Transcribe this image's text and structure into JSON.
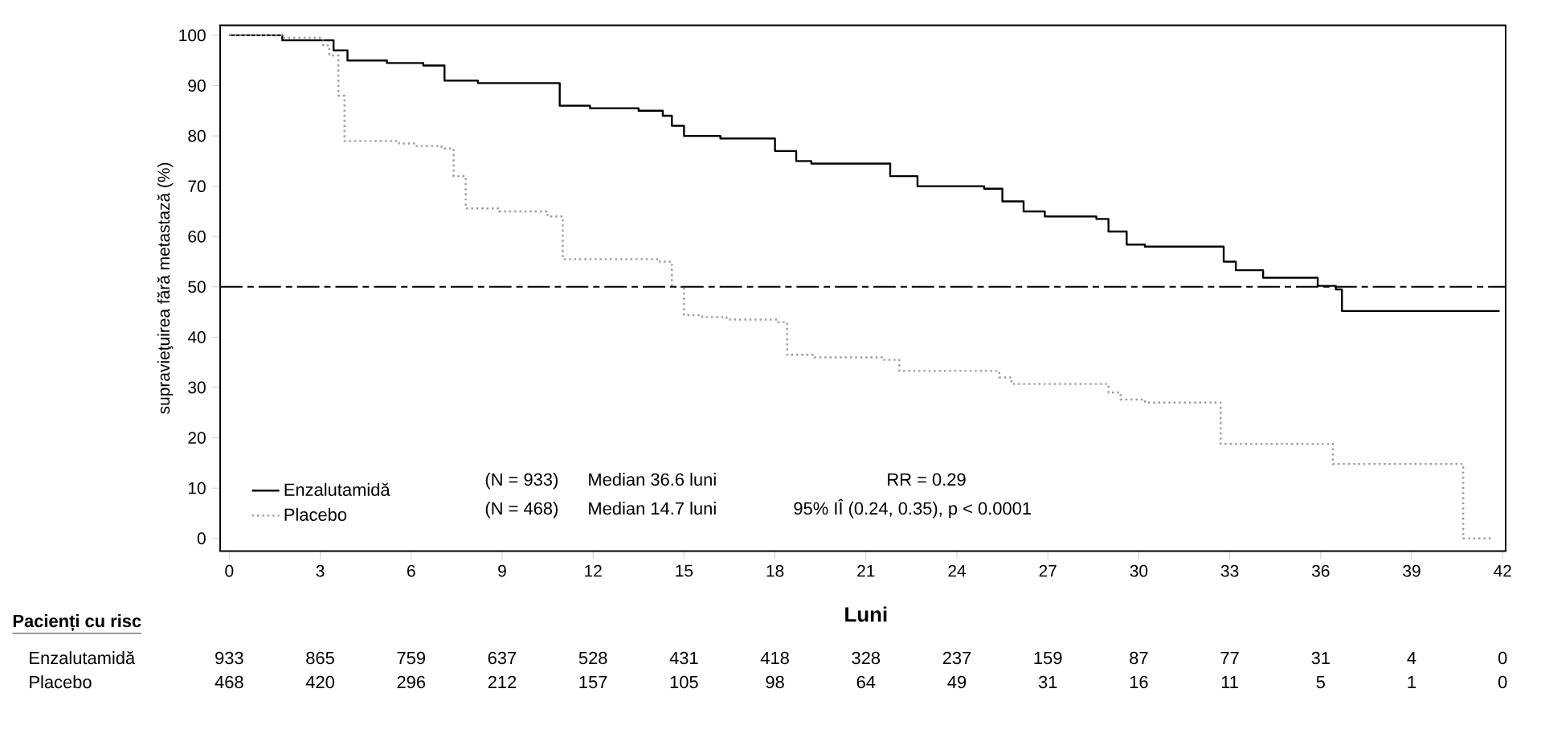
{
  "chart_data": {
    "type": "step",
    "xlabel": "Luni",
    "ylabel": "supravieţuirea fără metastază (%)",
    "xlim": [
      -0.3,
      42.1
    ],
    "ylim": [
      -2.5,
      102
    ],
    "xticks": [
      0,
      3,
      6,
      9,
      12,
      15,
      18,
      21,
      24,
      27,
      30,
      33,
      36,
      39,
      42
    ],
    "yticks": [
      0,
      10,
      20,
      30,
      40,
      50,
      60,
      70,
      80,
      90,
      100
    ],
    "legend": "bottom left",
    "ref_lines": [
      {
        "axis": "y",
        "value": 50,
        "line_style": "dashdot",
        "color": "#000000"
      }
    ],
    "series": [
      {
        "name": "Enzalutamidă",
        "color": "#000000",
        "line_style": "solid",
        "x": [
          0,
          1.75,
          3.44,
          3.9,
          5.2,
          6.4,
          7.1,
          8.2,
          10.9,
          11.9,
          13.5,
          14.3,
          14.6,
          15.0,
          16.2,
          18.0,
          18.7,
          19.2,
          21.8,
          22.7,
          24.9,
          25.5,
          26.2,
          26.9,
          28.6,
          29.0,
          29.6,
          30.2,
          32.8,
          33.2,
          34.1,
          35.9,
          36.5,
          36.7,
          41.9
        ],
        "values": [
          100,
          99,
          97,
          95,
          94.5,
          94,
          91,
          90.5,
          86,
          85.5,
          85,
          84,
          82,
          80,
          79.5,
          77,
          75,
          74.5,
          72,
          70,
          69.5,
          67,
          65,
          64,
          63.5,
          61,
          58.4,
          58,
          55,
          53.3,
          51.8,
          50.2,
          49.5,
          45.2,
          45.2
        ]
      },
      {
        "name": "Placebo",
        "color": "#999999",
        "line_style": "dotted",
        "x": [
          0,
          1.8,
          3.1,
          3.3,
          3.6,
          3.8,
          5.6,
          6.1,
          7.0,
          7.4,
          7.8,
          8.9,
          10.5,
          11.0,
          14.2,
          14.6,
          15.0,
          15.6,
          16.4,
          18.1,
          18.4,
          19.3,
          21.6,
          22.1,
          25.4,
          25.8,
          29.0,
          29.4,
          30.2,
          32.7,
          36.4,
          40.7,
          41.7
        ],
        "values": [
          100,
          99.5,
          98,
          96,
          88,
          79,
          78.5,
          78,
          77.5,
          72,
          65.6,
          65,
          64,
          55.5,
          55,
          50,
          44.4,
          44,
          43.5,
          43,
          36.5,
          36,
          35.5,
          33.3,
          32,
          30.7,
          29,
          27.6,
          27,
          18.8,
          14.8,
          0,
          0
        ]
      }
    ],
    "annotations": [
      "(N = 933)",
      "Median 36.6 luni",
      "RR = 0.29",
      "(N = 468)",
      "Median 14.7 luni",
      "95% IÎ (0.24, 0.35), p < 0.0001",
      "Pacienți cu risc",
      "Enzalutamidă",
      "933",
      "865",
      "759",
      "637",
      "528",
      "431",
      "418",
      "328",
      "237",
      "159",
      "87",
      "77",
      "31",
      "4",
      "0",
      "Placebo",
      "468",
      "420",
      "296",
      "212",
      "157",
      "105",
      "98",
      "64",
      "49",
      "31",
      "16",
      "11",
      "5",
      "1",
      "0"
    ]
  }
}
